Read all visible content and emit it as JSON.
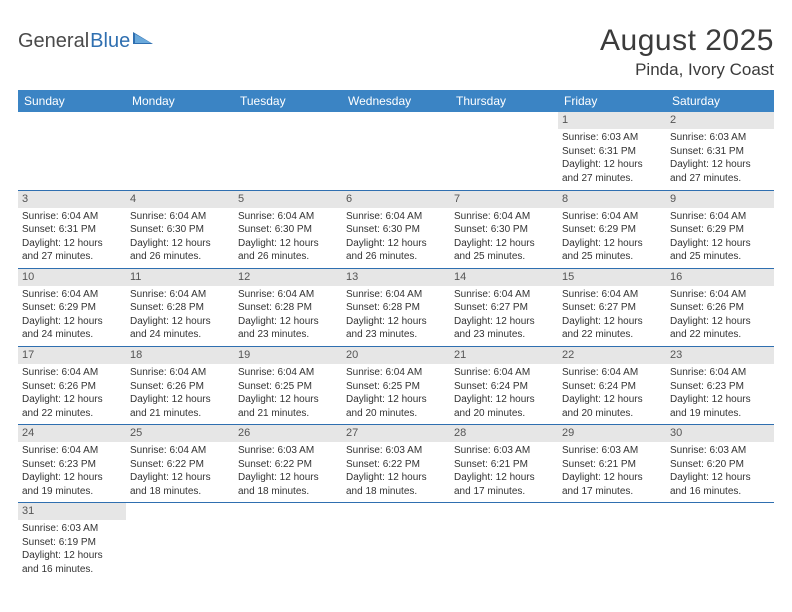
{
  "logo": {
    "text1": "General",
    "text2": "Blue"
  },
  "title": "August 2025",
  "location": "Pinda, Ivory Coast",
  "colors": {
    "header_bg": "#3b84c4",
    "header_fg": "#ffffff",
    "row_divider": "#2f6fb0",
    "daynum_bg": "#e6e6e6",
    "text": "#333333",
    "logo_gray": "#4a4a4a",
    "logo_blue": "#2f6fb0",
    "triangle": "#2f6fb0"
  },
  "weekdays": [
    "Sunday",
    "Monday",
    "Tuesday",
    "Wednesday",
    "Thursday",
    "Friday",
    "Saturday"
  ],
  "weeks": [
    [
      null,
      null,
      null,
      null,
      null,
      {
        "d": "1",
        "sr": "6:03 AM",
        "ss": "6:31 PM",
        "dl": "12 hours and 27 minutes."
      },
      {
        "d": "2",
        "sr": "6:03 AM",
        "ss": "6:31 PM",
        "dl": "12 hours and 27 minutes."
      }
    ],
    [
      {
        "d": "3",
        "sr": "6:04 AM",
        "ss": "6:31 PM",
        "dl": "12 hours and 27 minutes."
      },
      {
        "d": "4",
        "sr": "6:04 AM",
        "ss": "6:30 PM",
        "dl": "12 hours and 26 minutes."
      },
      {
        "d": "5",
        "sr": "6:04 AM",
        "ss": "6:30 PM",
        "dl": "12 hours and 26 minutes."
      },
      {
        "d": "6",
        "sr": "6:04 AM",
        "ss": "6:30 PM",
        "dl": "12 hours and 26 minutes."
      },
      {
        "d": "7",
        "sr": "6:04 AM",
        "ss": "6:30 PM",
        "dl": "12 hours and 25 minutes."
      },
      {
        "d": "8",
        "sr": "6:04 AM",
        "ss": "6:29 PM",
        "dl": "12 hours and 25 minutes."
      },
      {
        "d": "9",
        "sr": "6:04 AM",
        "ss": "6:29 PM",
        "dl": "12 hours and 25 minutes."
      }
    ],
    [
      {
        "d": "10",
        "sr": "6:04 AM",
        "ss": "6:29 PM",
        "dl": "12 hours and 24 minutes."
      },
      {
        "d": "11",
        "sr": "6:04 AM",
        "ss": "6:28 PM",
        "dl": "12 hours and 24 minutes."
      },
      {
        "d": "12",
        "sr": "6:04 AM",
        "ss": "6:28 PM",
        "dl": "12 hours and 23 minutes."
      },
      {
        "d": "13",
        "sr": "6:04 AM",
        "ss": "6:28 PM",
        "dl": "12 hours and 23 minutes."
      },
      {
        "d": "14",
        "sr": "6:04 AM",
        "ss": "6:27 PM",
        "dl": "12 hours and 23 minutes."
      },
      {
        "d": "15",
        "sr": "6:04 AM",
        "ss": "6:27 PM",
        "dl": "12 hours and 22 minutes."
      },
      {
        "d": "16",
        "sr": "6:04 AM",
        "ss": "6:26 PM",
        "dl": "12 hours and 22 minutes."
      }
    ],
    [
      {
        "d": "17",
        "sr": "6:04 AM",
        "ss": "6:26 PM",
        "dl": "12 hours and 22 minutes."
      },
      {
        "d": "18",
        "sr": "6:04 AM",
        "ss": "6:26 PM",
        "dl": "12 hours and 21 minutes."
      },
      {
        "d": "19",
        "sr": "6:04 AM",
        "ss": "6:25 PM",
        "dl": "12 hours and 21 minutes."
      },
      {
        "d": "20",
        "sr": "6:04 AM",
        "ss": "6:25 PM",
        "dl": "12 hours and 20 minutes."
      },
      {
        "d": "21",
        "sr": "6:04 AM",
        "ss": "6:24 PM",
        "dl": "12 hours and 20 minutes."
      },
      {
        "d": "22",
        "sr": "6:04 AM",
        "ss": "6:24 PM",
        "dl": "12 hours and 20 minutes."
      },
      {
        "d": "23",
        "sr": "6:04 AM",
        "ss": "6:23 PM",
        "dl": "12 hours and 19 minutes."
      }
    ],
    [
      {
        "d": "24",
        "sr": "6:04 AM",
        "ss": "6:23 PM",
        "dl": "12 hours and 19 minutes."
      },
      {
        "d": "25",
        "sr": "6:04 AM",
        "ss": "6:22 PM",
        "dl": "12 hours and 18 minutes."
      },
      {
        "d": "26",
        "sr": "6:03 AM",
        "ss": "6:22 PM",
        "dl": "12 hours and 18 minutes."
      },
      {
        "d": "27",
        "sr": "6:03 AM",
        "ss": "6:22 PM",
        "dl": "12 hours and 18 minutes."
      },
      {
        "d": "28",
        "sr": "6:03 AM",
        "ss": "6:21 PM",
        "dl": "12 hours and 17 minutes."
      },
      {
        "d": "29",
        "sr": "6:03 AM",
        "ss": "6:21 PM",
        "dl": "12 hours and 17 minutes."
      },
      {
        "d": "30",
        "sr": "6:03 AM",
        "ss": "6:20 PM",
        "dl": "12 hours and 16 minutes."
      }
    ],
    [
      {
        "d": "31",
        "sr": "6:03 AM",
        "ss": "6:19 PM",
        "dl": "12 hours and 16 minutes."
      },
      null,
      null,
      null,
      null,
      null,
      null
    ]
  ],
  "labels": {
    "sunrise": "Sunrise:",
    "sunset": "Sunset:",
    "daylight": "Daylight:"
  }
}
